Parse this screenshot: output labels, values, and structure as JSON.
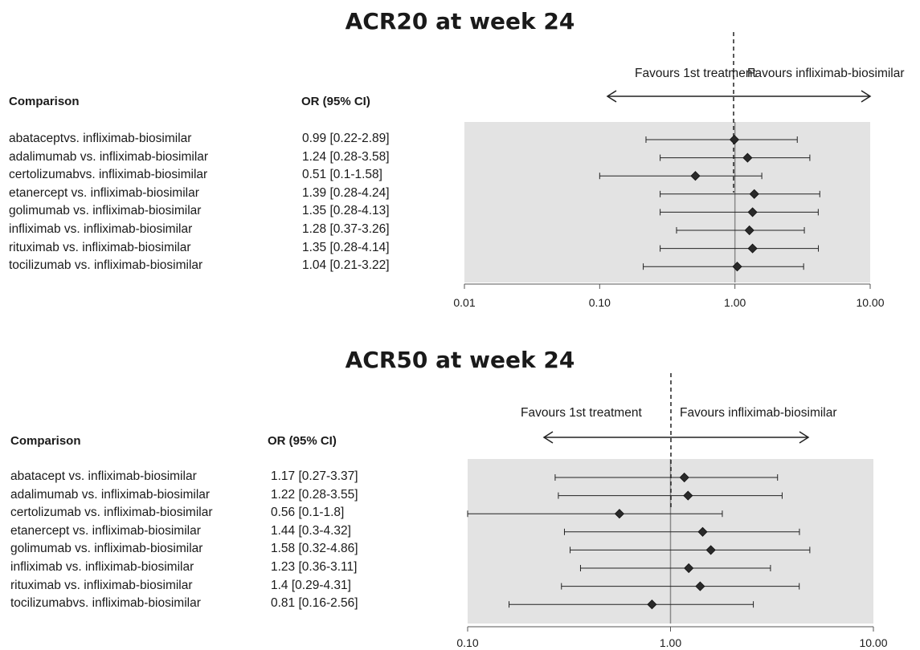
{
  "chart_data": [
    {
      "type": "forest",
      "title": "ACR20 at week 24",
      "columns": {
        "comparison": "Comparison",
        "or": "OR (95% CI)"
      },
      "favours_left": "Favours  1st treatment",
      "favours_right": "Favours infliximab-biosimilar",
      "x_scale": "log",
      "xlim": [
        0.01,
        10
      ],
      "x_ticks": [
        "0.01",
        "0.10",
        "1.00",
        "10.00"
      ],
      "reference_line": 1,
      "rows": [
        {
          "label": "abataceptvs. infliximab-biosimilar",
          "or_text": "0.99 [0.22-2.89]",
          "or": 0.99,
          "lo": 0.22,
          "hi": 2.89
        },
        {
          "label": "adalimumab vs. infliximab-biosimilar",
          "or_text": "1.24 [0.28-3.58]",
          "or": 1.24,
          "lo": 0.28,
          "hi": 3.58
        },
        {
          "label": "certolizumabvs. infliximab-biosimilar",
          "or_text": "0.51 [0.1-1.58]",
          "or": 0.51,
          "lo": 0.1,
          "hi": 1.58
        },
        {
          "label": "etanercept vs. infliximab-biosimilar",
          "or_text": "1.39 [0.28-4.24]",
          "or": 1.39,
          "lo": 0.28,
          "hi": 4.24
        },
        {
          "label": "golimumab vs. infliximab-biosimilar",
          "or_text": "1.35 [0.28-4.13]",
          "or": 1.35,
          "lo": 0.28,
          "hi": 4.13
        },
        {
          "label": "infliximab vs. infliximab-biosimilar",
          "or_text": "1.28 [0.37-3.26]",
          "or": 1.28,
          "lo": 0.37,
          "hi": 3.26
        },
        {
          "label": "rituximab vs. infliximab-biosimilar",
          "or_text": "1.35 [0.28-4.14]",
          "or": 1.35,
          "lo": 0.28,
          "hi": 4.14
        },
        {
          "label": "tocilizumab vs. infliximab-biosimilar",
          "or_text": "1.04 [0.21-3.22]",
          "or": 1.04,
          "lo": 0.21,
          "hi": 3.22
        }
      ]
    },
    {
      "type": "forest",
      "title": "ACR50 at week 24",
      "columns": {
        "comparison": "Comparison",
        "or": "OR (95% CI)"
      },
      "favours_left": "Favours  1st treatment",
      "favours_right": "Favours infliximab-biosimilar",
      "x_scale": "log",
      "xlim": [
        0.1,
        10
      ],
      "x_ticks": [
        "0.10",
        "1.00",
        "10.00"
      ],
      "reference_line": 1,
      "rows": [
        {
          "label": "abatacept vs. infliximab-biosimilar",
          "or_text": "1.17 [0.27-3.37]",
          "or": 1.17,
          "lo": 0.27,
          "hi": 3.37
        },
        {
          "label": "adalimumab vs. infliximab-biosimilar",
          "or_text": "1.22 [0.28-3.55]",
          "or": 1.22,
          "lo": 0.28,
          "hi": 3.55
        },
        {
          "label": "certolizumab vs. infliximab-biosimilar",
          "or_text": "0.56 [0.1-1.8]",
          "or": 0.56,
          "lo": 0.1,
          "hi": 1.8
        },
        {
          "label": "etanercept vs. infliximab-biosimilar",
          "or_text": "1.44 [0.3-4.32]",
          "or": 1.44,
          "lo": 0.3,
          "hi": 4.32
        },
        {
          "label": "golimumab vs. infliximab-biosimilar",
          "or_text": " 1.58 [0.32-4.86]",
          "or": 1.58,
          "lo": 0.32,
          "hi": 4.86
        },
        {
          "label": "infliximab vs. infliximab-biosimilar",
          "or_text": "1.23 [0.36-3.11]",
          "or": 1.23,
          "lo": 0.36,
          "hi": 3.11
        },
        {
          "label": "rituximab vs. infliximab-biosimilar",
          "or_text": "1.4 [0.29-4.31]",
          "or": 1.4,
          "lo": 0.29,
          "hi": 4.31
        },
        {
          "label": "tocilizumabvs. infliximab-biosimilar",
          "or_text": "0.81 [0.16-2.56]",
          "or": 0.81,
          "lo": 0.16,
          "hi": 2.56
        }
      ]
    }
  ]
}
